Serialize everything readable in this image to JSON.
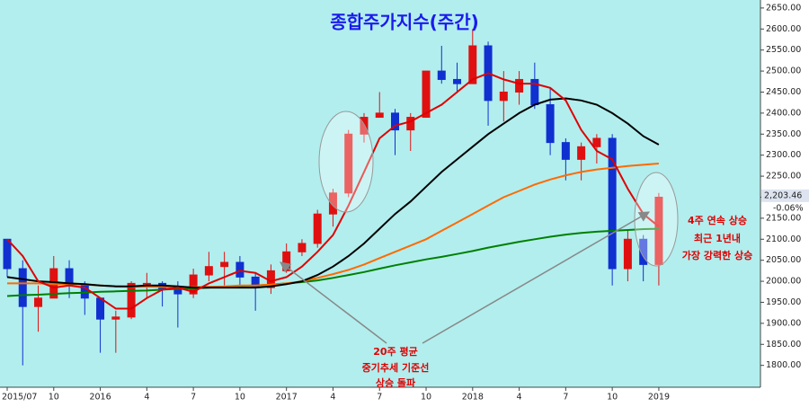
{
  "chart_data": {
    "type": "candlestick",
    "title": "종합주가지수(주간)",
    "categories": [
      "2015/07",
      null,
      null,
      "10",
      null,
      null,
      "2016",
      null,
      null,
      "4",
      null,
      null,
      "7",
      null,
      null,
      "10",
      null,
      null,
      "2017",
      null,
      null,
      "4",
      null,
      null,
      "7",
      null,
      null,
      "10",
      null,
      null,
      "2018",
      null,
      null,
      "4",
      null,
      null,
      "7",
      null,
      null,
      "10",
      null,
      null,
      "2019"
    ],
    "open": [
      2100,
      2030,
      1940,
      1960,
      2030,
      1990,
      1960,
      1910,
      1915,
      1995,
      1995,
      1980,
      1970,
      2015,
      2035,
      2045,
      2010,
      1985,
      2025,
      2070,
      2090,
      2160,
      2210,
      2350,
      2390,
      2400,
      2360,
      2390,
      2500,
      2480,
      2470,
      2560,
      2430,
      2450,
      2480,
      2420,
      2330,
      2290,
      2320,
      2340,
      2030,
      2100,
      2040
    ],
    "high": [
      2100,
      2050,
      1990,
      2060,
      2050,
      2000,
      1960,
      1930,
      2000,
      2020,
      2000,
      2000,
      2030,
      2070,
      2070,
      2060,
      2020,
      2040,
      2090,
      2100,
      2170,
      2220,
      2360,
      2400,
      2450,
      2410,
      2400,
      2500,
      2560,
      2520,
      2600,
      2570,
      2500,
      2500,
      2520,
      2460,
      2340,
      2330,
      2350,
      2350,
      2120,
      2110,
      2210
    ],
    "low": [
      2010,
      1800,
      1880,
      1960,
      1960,
      1920,
      1830,
      1830,
      1910,
      1960,
      1940,
      1890,
      1960,
      2000,
      1990,
      1990,
      1930,
      1970,
      2020,
      2060,
      2080,
      2130,
      2200,
      2330,
      2390,
      2300,
      2310,
      2390,
      2470,
      2450,
      2470,
      2370,
      2380,
      2420,
      2410,
      2300,
      2240,
      2240,
      2280,
      1990,
      2000,
      2000,
      1990
    ],
    "close": [
      2030,
      1940,
      1960,
      2030,
      1990,
      1960,
      1910,
      1915,
      1995,
      1995,
      1980,
      1970,
      2015,
      2035,
      2045,
      2010,
      1985,
      2025,
      2070,
      2090,
      2160,
      2210,
      2350,
      2390,
      2400,
      2360,
      2390,
      2500,
      2480,
      2470,
      2560,
      2430,
      2450,
      2480,
      2420,
      2330,
      2290,
      2320,
      2340,
      2030,
      2100,
      2040,
      2200
    ],
    "up_color": "#e01010",
    "down_color": "#1030d0",
    "series": [
      {
        "color": "#008000",
        "values": [
          1965,
          1967,
          1968,
          1970,
          1972,
          1973,
          1975,
          1976,
          1977,
          1978,
          1980,
          1982,
          1983,
          1985,
          1987,
          1989,
          1990,
          1992,
          1995,
          1998,
          2002,
          2008,
          2015,
          2022,
          2030,
          2038,
          2045,
          2052,
          2058,
          2065,
          2072,
          2080,
          2087,
          2094,
          2100,
          2106,
          2111,
          2115,
          2118,
          2120,
          2122,
          2124,
          2125
        ]
      },
      {
        "color": "#ff6a00",
        "values": [
          1995,
          1995,
          1995,
          1993,
          1993,
          1992,
          1990,
          1988,
          1987,
          1987,
          1987,
          1986,
          1986,
          1987,
          1988,
          1990,
          1990,
          1992,
          1995,
          2000,
          2008,
          2017,
          2027,
          2040,
          2055,
          2070,
          2085,
          2100,
          2120,
          2140,
          2160,
          2180,
          2200,
          2215,
          2230,
          2242,
          2252,
          2260,
          2266,
          2270,
          2274,
          2277,
          2280
        ]
      },
      {
        "color": "#000000",
        "values": [
          2010,
          2005,
          2000,
          1998,
          1995,
          1993,
          1990,
          1988,
          1988,
          1990,
          1990,
          1988,
          1985,
          1985,
          1985,
          1985,
          1985,
          1988,
          1993,
          2000,
          2015,
          2035,
          2060,
          2090,
          2125,
          2160,
          2190,
          2225,
          2260,
          2290,
          2320,
          2350,
          2375,
          2400,
          2420,
          2432,
          2435,
          2430,
          2420,
          2400,
          2375,
          2345,
          2325
        ]
      },
      {
        "color": "#e00000",
        "values": [
          2100,
          2060,
          2000,
          1985,
          1990,
          1985,
          1960,
          1935,
          1935,
          1960,
          1980,
          1985,
          1975,
          1995,
          2010,
          2025,
          2020,
          2000,
          2010,
          2035,
          2070,
          2110,
          2180,
          2260,
          2340,
          2370,
          2380,
          2400,
          2420,
          2450,
          2480,
          2495,
          2480,
          2470,
          2470,
          2460,
          2430,
          2360,
          2310,
          2290,
          2220,
          2160,
          2130
        ]
      }
    ],
    "ylim": [
      1748,
      2669
    ],
    "yticks": [
      {
        "value": 2650,
        "label": "2650.00"
      },
      {
        "value": 2600,
        "label": "2600.00"
      },
      {
        "value": 2550,
        "label": "2550.00"
      },
      {
        "value": 2500,
        "label": "2500.00"
      },
      {
        "value": 2450,
        "label": "2450.00"
      },
      {
        "value": 2400,
        "label": "2400.00"
      },
      {
        "value": 2350,
        "label": "2350.00"
      },
      {
        "value": 2300,
        "label": "2300.00"
      },
      {
        "value": 2250,
        "label": "2250.00"
      },
      {
        "value": 2200,
        "label": "2200.00"
      },
      {
        "value": 2150,
        "label": "2150.00"
      },
      {
        "value": 2100,
        "label": "2100.00"
      },
      {
        "value": 2050,
        "label": "2050.00"
      },
      {
        "value": 2000,
        "label": "2000.00"
      },
      {
        "value": 1950,
        "label": "1950.00"
      },
      {
        "value": 1900,
        "label": "1900.00"
      },
      {
        "value": 1850,
        "label": "1850.00"
      },
      {
        "value": 1800,
        "label": "1800.00"
      }
    ],
    "last_price": {
      "value": 2203.46,
      "label": "2,203.46"
    },
    "change_label": "-0.06%",
    "annotation_right": [
      "4주 연속 상승",
      "최근 1년내",
      "가장 강력한 상승"
    ],
    "annotation_middle": [
      "20주 평균",
      "중기추세 기준선",
      "상승 돌파"
    ]
  }
}
